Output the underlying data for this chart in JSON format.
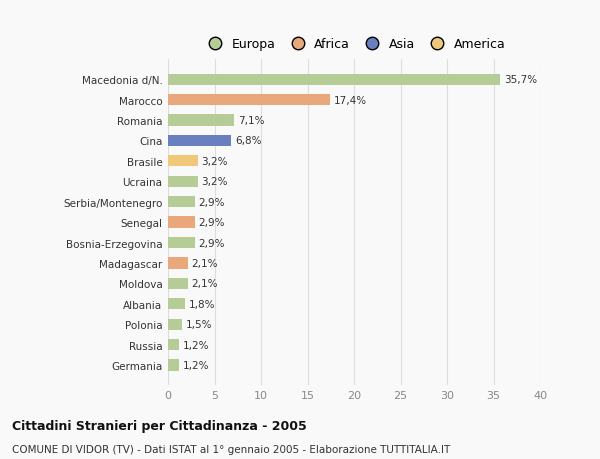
{
  "categories": [
    "Macedonia d/N.",
    "Marocco",
    "Romania",
    "Cina",
    "Brasile",
    "Ucraina",
    "Serbia/Montenegro",
    "Senegal",
    "Bosnia-Erzegovina",
    "Madagascar",
    "Moldova",
    "Albania",
    "Polonia",
    "Russia",
    "Germania"
  ],
  "values": [
    35.7,
    17.4,
    7.1,
    6.8,
    3.2,
    3.2,
    2.9,
    2.9,
    2.9,
    2.1,
    2.1,
    1.8,
    1.5,
    1.2,
    1.2
  ],
  "labels": [
    "35,7%",
    "17,4%",
    "7,1%",
    "6,8%",
    "3,2%",
    "3,2%",
    "2,9%",
    "2,9%",
    "2,9%",
    "2,1%",
    "2,1%",
    "1,8%",
    "1,5%",
    "1,2%",
    "1,2%"
  ],
  "colors": [
    "#b5cc96",
    "#e8a87c",
    "#b5cc96",
    "#6a7fbd",
    "#f0c87a",
    "#b5cc96",
    "#b5cc96",
    "#e8a87c",
    "#b5cc96",
    "#e8a87c",
    "#b5cc96",
    "#b5cc96",
    "#b5cc96",
    "#b5cc96",
    "#b5cc96"
  ],
  "legend_labels": [
    "Europa",
    "Africa",
    "Asia",
    "America"
  ],
  "legend_colors": [
    "#b5cc96",
    "#e8a87c",
    "#6a7fbd",
    "#f0c87a"
  ],
  "xlim": [
    0,
    40
  ],
  "xticks": [
    0,
    5,
    10,
    15,
    20,
    25,
    30,
    35,
    40
  ],
  "title": "Cittadini Stranieri per Cittadinanza - 2005",
  "subtitle": "COMUNE DI VIDOR (TV) - Dati ISTAT al 1° gennaio 2005 - Elaborazione TUTTITALIA.IT",
  "bg_color": "#f9f9f9",
  "grid_color": "#dddddd"
}
